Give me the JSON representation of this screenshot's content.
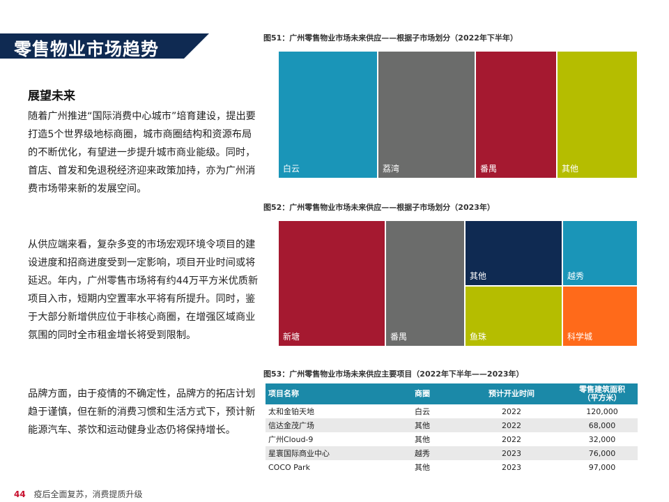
{
  "title": "零售物业市场趋势",
  "subheading": "展望未来",
  "paragraphs": [
    "随着广州推进“国际消费中心城市”培育建设，提出要打造5个世界级地标商圈，城市商圈结构和资源布局的不断优化，有望进一步提升城市商业能级。同时，首店、首发和免退税经济迎来政策加持，亦为广州消费市场带来新的发展空间。",
    "从供应端来看，复杂多变的市场宏观环境令项目的建设进度和招商进度受到一定影响，项目开业时间或将延迟。年内，广州零售市场将有约44万平方米优质新项目入市，短期内空置率水平将有所提升。同时，鉴于大部分新增供应位于非核心商圈，在增强区域商业氛围的同时全市租金增长将受到限制。",
    "品牌方面，由于疫情的不确定性，品牌方的拓店计划趋于谨慎，但在新的消费习惯和生活方式下，预计新能源汽车、茶饮和运动健身业态仍将保持增长。"
  ],
  "footer": {
    "page_number": "44",
    "text": "疫后全面复苏，消费提质升级"
  },
  "chart_data": [
    {
      "type": "treemap",
      "title": "图51：广州零售物业市场未来供应——根据子市场划分（2022年下半年）",
      "tiles": [
        {
          "name": "白云",
          "color": "#1a95b8"
        },
        {
          "name": "荔湾",
          "color": "#6b6c6b"
        },
        {
          "name": "番禺",
          "color": "#a51930"
        },
        {
          "name": "其他",
          "color": "#b5bd00"
        }
      ]
    },
    {
      "type": "treemap",
      "title": "图52：广州零售物业市场未来供应——根据子市场划分（2023年）",
      "tiles": [
        {
          "name": "新塘",
          "color": "#a51930"
        },
        {
          "name": "番禺",
          "color": "#6b6c6b"
        },
        {
          "name": "其他",
          "color": "#0f2a52"
        },
        {
          "name": "越秀",
          "color": "#1a95b8"
        },
        {
          "name": "鱼珠",
          "color": "#b5bd00"
        },
        {
          "name": "科学城",
          "color": "#ff6a1a"
        }
      ]
    }
  ],
  "table": {
    "caption": "图53：广州零售物业市场未来供应主要项目（2022年下半年——2023年）",
    "headers": [
      "项目名称",
      "商圈",
      "预计开业时间",
      "零售建筑面积\n（平方米）"
    ],
    "rows": [
      [
        "太和金铂天地",
        "白云",
        "2022",
        "120,000"
      ],
      [
        "信达金茂广场",
        "其他",
        "2022",
        "68,000"
      ],
      [
        "广州Cloud-9",
        "其他",
        "2022",
        "32,000"
      ],
      [
        "星寰国际商业中心",
        "越秀",
        "2023",
        "76,000"
      ],
      [
        "COCO Park",
        "其他",
        "2023",
        "97,000"
      ]
    ]
  }
}
